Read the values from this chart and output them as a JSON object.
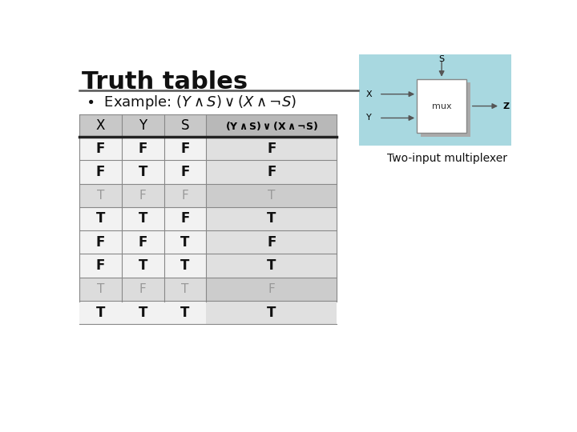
{
  "title": "Truth tables",
  "two_input_text": "Two-input multiplexer",
  "gray_rows": [
    2,
    6
  ],
  "row_data": [
    [
      "F",
      "F",
      "F",
      "F"
    ],
    [
      "F",
      "T",
      "F",
      "F"
    ],
    [
      "T",
      "F",
      "F",
      "T"
    ],
    [
      "T",
      "T",
      "F",
      "T"
    ],
    [
      "F",
      "F",
      "T",
      "F"
    ],
    [
      "F",
      "T",
      "T",
      "T"
    ],
    [
      "T",
      "F",
      "T",
      "F"
    ],
    [
      "T",
      "T",
      "T",
      "T"
    ]
  ],
  "header_bg_left": "#c8c8c8",
  "header_bg_right": "#b8b8b8",
  "row_bg_white": "#f2f2f2",
  "row_bg_gray": "#dcdcdc",
  "result_bg_white": "#e0e0e0",
  "result_bg_gray": "#cccccc",
  "mux_bg_color": "#a8d8e0",
  "grid_color": "#888888",
  "thick_line_color": "#222222",
  "title_color": "#111111",
  "gray_text_color": "#999999",
  "dark_text_color": "#111111"
}
